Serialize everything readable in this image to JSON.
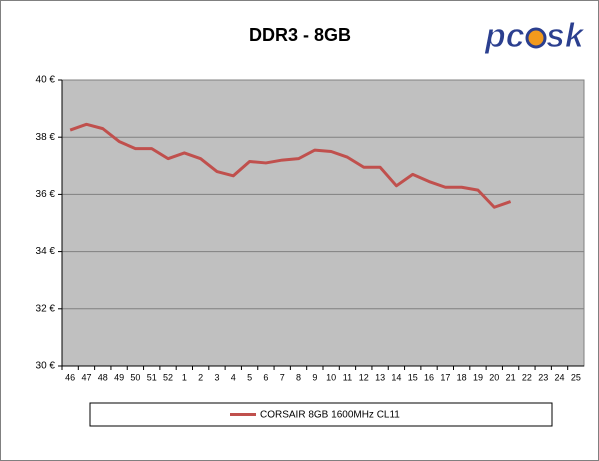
{
  "chart_data": {
    "type": "line",
    "title": "DDR3 - 8GB",
    "logo": [
      "pc",
      "sk"
    ],
    "categories": [
      "46",
      "47",
      "48",
      "49",
      "50",
      "51",
      "52",
      "1",
      "2",
      "3",
      "4",
      "5",
      "6",
      "7",
      "8",
      "9",
      "10",
      "11",
      "12",
      "13",
      "14",
      "15",
      "16",
      "17",
      "18",
      "19",
      "20",
      "21",
      "22",
      "23",
      "24",
      "25"
    ],
    "series": [
      {
        "name": "CORSAIR 8GB 1600MHz CL11",
        "color": "#c0504d",
        "values": [
          38.25,
          38.45,
          38.3,
          37.85,
          37.6,
          37.6,
          37.25,
          37.45,
          37.25,
          36.8,
          36.65,
          37.15,
          37.1,
          37.2,
          37.25,
          37.55,
          37.5,
          37.3,
          36.95,
          36.95,
          36.3,
          36.7,
          36.45,
          36.25,
          36.25,
          36.15,
          35.55,
          35.75,
          null,
          null,
          null,
          null
        ]
      }
    ],
    "ylim": [
      30,
      40
    ],
    "yticks": [
      {
        "value": 30,
        "label": "30 €"
      },
      {
        "value": 32,
        "label": "32 €"
      },
      {
        "value": 34,
        "label": "34 €"
      },
      {
        "value": 36,
        "label": "36 €"
      },
      {
        "value": 38,
        "label": "38 €"
      },
      {
        "value": 40,
        "label": "40 €"
      }
    ],
    "grid": true,
    "plot_background": "#c0c0c0"
  }
}
